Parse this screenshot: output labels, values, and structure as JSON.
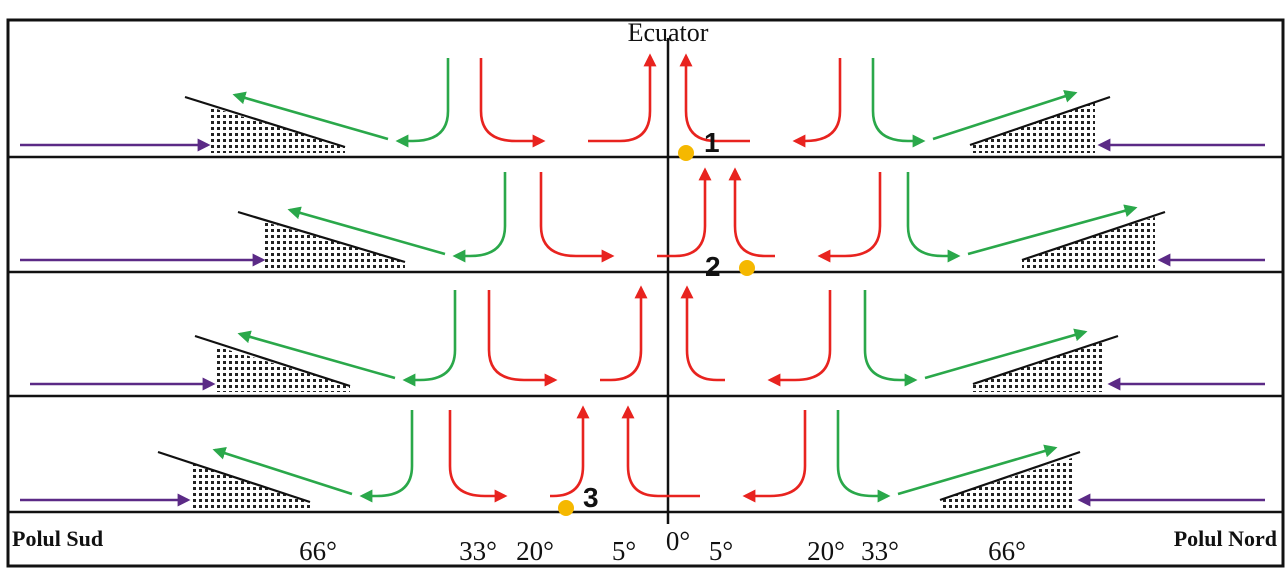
{
  "title": "Ecuator",
  "left_label": "Polul Sud",
  "right_label": "Polul Nord",
  "latitude_ticks": [
    "66°",
    "33°",
    "20°",
    "5°",
    "0°",
    "5°",
    "20°",
    "33°",
    "66°"
  ],
  "markers": [
    "1",
    "2",
    "3"
  ],
  "colors": {
    "polar_easterlies": "#5b2a86",
    "westerlies": "#2aa84a",
    "trade_winds": "#e8231f",
    "descending": "#2ea7b8",
    "marker": "#f5b800",
    "frame": "#111111"
  }
}
